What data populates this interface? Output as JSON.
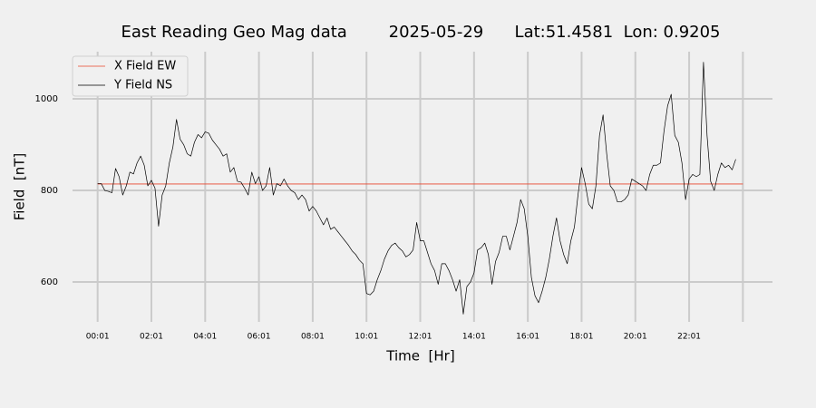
{
  "chart_data": {
    "type": "line",
    "title": "East Reading Geo Mag data        2025-05-29      Lat:51.4581  Lon: 0.9205",
    "xlabel": "Time  [Hr]",
    "ylabel": "Field  [nT]",
    "xlim": [
      -55,
      1507
    ],
    "ylim": [
      513,
      1103
    ],
    "xticks": [
      {
        "value": 1,
        "label": "00:01"
      },
      {
        "value": 121,
        "label": "02:01"
      },
      {
        "value": 241,
        "label": "04:01"
      },
      {
        "value": 361,
        "label": "06:01"
      },
      {
        "value": 481,
        "label": "08:01"
      },
      {
        "value": 601,
        "label": "10:01"
      },
      {
        "value": 721,
        "label": "12:01"
      },
      {
        "value": 841,
        "label": "14:01"
      },
      {
        "value": 961,
        "label": "16:01"
      },
      {
        "value": 1081,
        "label": "18:01"
      },
      {
        "value": 1201,
        "label": "20:01"
      },
      {
        "value": 1321,
        "label": "22:01"
      },
      {
        "value": 1441,
        "label": null
      }
    ],
    "yticks": [
      600,
      800,
      1000
    ],
    "grid": true,
    "legend": "upper left",
    "series": [
      {
        "name": "X Field EW",
        "color": "#e8442c",
        "x": [
          1,
          1441
        ],
        "values": [
          814,
          814
        ]
      },
      {
        "name": "Y Field NS",
        "color": "#000000",
        "x": [
          1,
          9,
          17,
          25,
          33,
          41,
          49,
          57,
          65,
          73,
          81,
          89,
          97,
          105,
          113,
          121,
          129,
          137,
          145,
          153,
          161,
          169,
          177,
          185,
          193,
          201,
          209,
          217,
          225,
          233,
          241,
          249,
          257,
          265,
          273,
          281,
          289,
          297,
          305,
          313,
          321,
          329,
          337,
          345,
          353,
          361,
          369,
          377,
          385,
          393,
          401,
          409,
          417,
          425,
          433,
          441,
          449,
          457,
          465,
          473,
          481,
          489,
          497,
          505,
          513,
          521,
          529,
          537,
          545,
          553,
          561,
          569,
          577,
          585,
          593,
          601,
          609,
          617,
          625,
          633,
          641,
          649,
          657,
          665,
          673,
          681,
          689,
          697,
          705,
          713,
          721,
          729,
          737,
          745,
          753,
          761,
          769,
          777,
          785,
          793,
          801,
          809,
          817,
          825,
          833,
          841,
          849,
          857,
          865,
          873,
          881,
          889,
          897,
          905,
          913,
          921,
          929,
          937,
          945,
          953,
          961,
          969,
          977,
          985,
          993,
          1001,
          1009,
          1017,
          1025,
          1033,
          1041,
          1049,
          1057,
          1065,
          1073,
          1081,
          1089,
          1097,
          1105,
          1113,
          1121,
          1129,
          1137,
          1145,
          1153,
          1161,
          1169,
          1177,
          1185,
          1193,
          1201,
          1209,
          1217,
          1225,
          1233,
          1241,
          1249,
          1257,
          1265,
          1273,
          1281,
          1289,
          1297,
          1305,
          1313,
          1321,
          1329,
          1337,
          1345,
          1353,
          1361,
          1369,
          1377,
          1385,
          1393,
          1401,
          1409,
          1417,
          1425
        ],
        "values": [
          815,
          815,
          800,
          798,
          795,
          848,
          830,
          790,
          810,
          840,
          836,
          860,
          875,
          855,
          810,
          822,
          805,
          722,
          790,
          810,
          860,
          895,
          955,
          912,
          900,
          880,
          875,
          905,
          922,
          915,
          928,
          925,
          910,
          900,
          890,
          875,
          880,
          840,
          850,
          820,
          818,
          805,
          790,
          840,
          815,
          830,
          800,
          810,
          850,
          790,
          815,
          810,
          825,
          810,
          800,
          795,
          780,
          790,
          780,
          755,
          765,
          755,
          740,
          725,
          740,
          715,
          720,
          710,
          700,
          690,
          680,
          668,
          660,
          648,
          640,
          575,
          572,
          580,
          605,
          625,
          650,
          668,
          680,
          685,
          675,
          668,
          655,
          660,
          670,
          730,
          690,
          690,
          665,
          640,
          625,
          595,
          640,
          640,
          625,
          605,
          580,
          605,
          530,
          590,
          600,
          620,
          670,
          675,
          685,
          660,
          595,
          645,
          665,
          700,
          700,
          670,
          700,
          730,
          780,
          760,
          700,
          610,
          570,
          555,
          580,
          610,
          650,
          700,
          740,
          690,
          660,
          640,
          690,
          720,
          790,
          850,
          815,
          770,
          760,
          810,
          920,
          965,
          880,
          810,
          800,
          775,
          775,
          780,
          790,
          825,
          820,
          815,
          810,
          800,
          835,
          855,
          855,
          860,
          930,
          985,
          1010,
          920,
          905,
          860,
          780,
          825,
          835,
          830,
          835,
          1080,
          920,
          820,
          800,
          835,
          860,
          850,
          855,
          845,
          868
        ]
      }
    ]
  }
}
